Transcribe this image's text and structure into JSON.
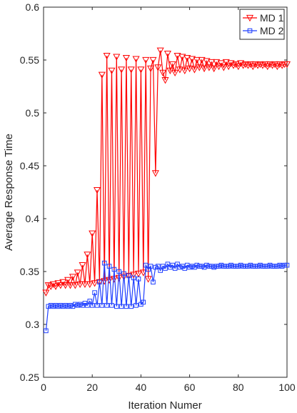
{
  "chart_data": {
    "type": "line",
    "xlabel": "Iteration Numer",
    "ylabel": "Average Response Time",
    "xlim": [
      0,
      100
    ],
    "ylim": [
      0.25,
      0.6
    ],
    "xticks": [
      0,
      20,
      40,
      60,
      80,
      100
    ],
    "yticks": [
      0.25,
      0.3,
      0.35,
      0.4,
      0.45,
      0.5,
      0.55,
      0.6
    ],
    "tick_labels_x": [
      "0",
      "20",
      "40",
      "60",
      "80",
      "100"
    ],
    "tick_labels_y": [
      "0.25",
      "0.3",
      "0.35",
      "0.4",
      "0.45",
      "0.5",
      "0.55",
      "0.6"
    ],
    "grid": false,
    "legend_position": "top-right",
    "series": [
      {
        "name": "MD 1",
        "color": "#ff0000",
        "marker": "triangle-down",
        "x": [
          1,
          2,
          3,
          4,
          5,
          6,
          7,
          8,
          9,
          10,
          11,
          12,
          13,
          14,
          15,
          16,
          17,
          18,
          19,
          20,
          21,
          22,
          23,
          24,
          25,
          26,
          27,
          28,
          29,
          30,
          31,
          32,
          33,
          34,
          35,
          36,
          37,
          38,
          39,
          40,
          41,
          42,
          43,
          44,
          45,
          46,
          47,
          48,
          49,
          50,
          51,
          52,
          53,
          54,
          55,
          56,
          57,
          58,
          59,
          60,
          61,
          62,
          63,
          64,
          65,
          66,
          67,
          68,
          69,
          70,
          71,
          72,
          73,
          74,
          75,
          76,
          77,
          78,
          79,
          80,
          81,
          82,
          83,
          84,
          85,
          86,
          87,
          88,
          89,
          90,
          91,
          92,
          93,
          94,
          95,
          96,
          97,
          98,
          99,
          100
        ],
        "y": [
          0.33,
          0.337,
          0.336,
          0.338,
          0.336,
          0.339,
          0.337,
          0.34,
          0.337,
          0.342,
          0.337,
          0.345,
          0.337,
          0.349,
          0.338,
          0.356,
          0.338,
          0.366,
          0.338,
          0.386,
          0.339,
          0.427,
          0.34,
          0.536,
          0.341,
          0.554,
          0.342,
          0.54,
          0.343,
          0.553,
          0.344,
          0.541,
          0.345,
          0.552,
          0.346,
          0.541,
          0.347,
          0.551,
          0.348,
          0.541,
          0.349,
          0.55,
          0.343,
          0.542,
          0.55,
          0.443,
          0.543,
          0.559,
          0.538,
          0.531,
          0.556,
          0.54,
          0.546,
          0.538,
          0.554,
          0.541,
          0.553,
          0.54,
          0.552,
          0.542,
          0.551,
          0.541,
          0.55,
          0.543,
          0.55,
          0.542,
          0.549,
          0.543,
          0.548,
          0.542,
          0.548,
          0.544,
          0.547,
          0.543,
          0.548,
          0.544,
          0.547,
          0.545,
          0.546,
          0.544,
          0.547,
          0.545,
          0.546,
          0.545,
          0.546,
          0.544,
          0.546,
          0.545,
          0.546,
          0.545,
          0.546,
          0.544,
          0.546,
          0.545,
          0.546,
          0.544,
          0.546,
          0.545,
          0.546,
          0.546
        ]
      },
      {
        "name": "MD 2",
        "color": "#1f3fff",
        "marker": "square",
        "x": [
          1,
          2,
          3,
          4,
          5,
          6,
          7,
          8,
          9,
          10,
          11,
          12,
          13,
          14,
          15,
          16,
          17,
          18,
          19,
          20,
          21,
          22,
          23,
          24,
          25,
          26,
          27,
          28,
          29,
          30,
          31,
          32,
          33,
          34,
          35,
          36,
          37,
          38,
          39,
          40,
          41,
          42,
          43,
          44,
          45,
          46,
          47,
          48,
          49,
          50,
          51,
          52,
          53,
          54,
          55,
          56,
          57,
          58,
          59,
          60,
          61,
          62,
          63,
          64,
          65,
          66,
          67,
          68,
          69,
          70,
          71,
          72,
          73,
          74,
          75,
          76,
          77,
          78,
          79,
          80,
          81,
          82,
          83,
          84,
          85,
          86,
          87,
          88,
          89,
          90,
          91,
          92,
          93,
          94,
          95,
          96,
          97,
          98,
          99,
          100
        ],
        "y": [
          0.294,
          0.317,
          0.318,
          0.317,
          0.318,
          0.317,
          0.318,
          0.317,
          0.318,
          0.317,
          0.318,
          0.317,
          0.319,
          0.318,
          0.319,
          0.318,
          0.32,
          0.318,
          0.322,
          0.318,
          0.33,
          0.318,
          0.34,
          0.318,
          0.358,
          0.318,
          0.355,
          0.318,
          0.352,
          0.317,
          0.35,
          0.317,
          0.348,
          0.317,
          0.346,
          0.317,
          0.344,
          0.318,
          0.343,
          0.319,
          0.321,
          0.356,
          0.352,
          0.355,
          0.34,
          0.354,
          0.355,
          0.351,
          0.355,
          0.353,
          0.357,
          0.354,
          0.356,
          0.353,
          0.357,
          0.354,
          0.355,
          0.353,
          0.356,
          0.354,
          0.355,
          0.354,
          0.356,
          0.355,
          0.355,
          0.354,
          0.356,
          0.355,
          0.355,
          0.354,
          0.355,
          0.355,
          0.356,
          0.355,
          0.355,
          0.355,
          0.356,
          0.355,
          0.355,
          0.355,
          0.356,
          0.355,
          0.355,
          0.355,
          0.356,
          0.355,
          0.355,
          0.355,
          0.356,
          0.355,
          0.355,
          0.355,
          0.356,
          0.355,
          0.355,
          0.355,
          0.356,
          0.355,
          0.356,
          0.356
        ]
      }
    ]
  }
}
